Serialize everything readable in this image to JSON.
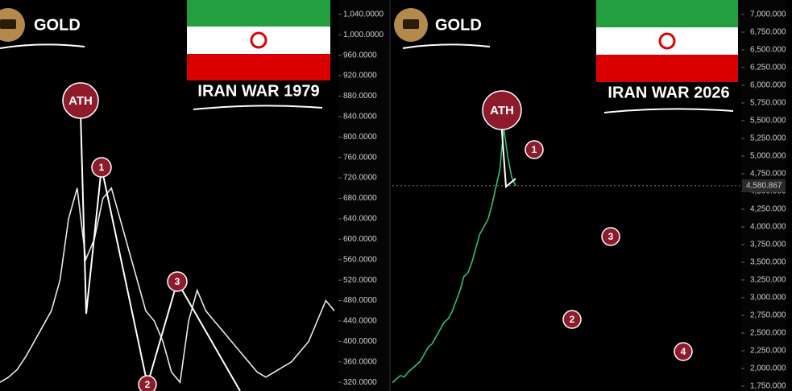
{
  "chart_data": [
    {
      "type": "line",
      "title": "GOLD",
      "subtitle": "IRAN WAR 1979",
      "color": "#e8e8e8",
      "categories": [
        null,
        null,
        null,
        null,
        null,
        null,
        null,
        null,
        null,
        null,
        null,
        null,
        null,
        null,
        null,
        null,
        null,
        null,
        null,
        null,
        null,
        null,
        null,
        null,
        null,
        null,
        null,
        null,
        null,
        null,
        null,
        null,
        null,
        null,
        null,
        null,
        null,
        null,
        null,
        null
      ],
      "values": [
        320,
        330,
        345,
        370,
        400,
        430,
        460,
        520,
        640,
        700,
        560,
        600,
        680,
        700,
        640,
        580,
        520,
        460,
        440,
        400,
        340,
        320,
        440,
        500,
        460,
        440,
        420,
        400,
        380,
        360,
        340,
        330,
        340,
        350,
        360,
        380,
        400,
        440,
        480,
        460
      ],
      "ylim": [
        303,
        1068
      ],
      "yticks": [
        {
          "value": 320,
          "label": "320.0000"
        },
        {
          "value": 360,
          "label": "360.0000"
        },
        {
          "value": 400,
          "label": "400.0000"
        },
        {
          "value": 440,
          "label": "440.0000"
        },
        {
          "value": 480,
          "label": "480.0000"
        },
        {
          "value": 520,
          "label": "520.0000"
        },
        {
          "value": 560,
          "label": "560.0000"
        },
        {
          "value": 600,
          "label": "600.0000"
        },
        {
          "value": 640,
          "label": "640.0000"
        },
        {
          "value": 680,
          "label": "680.0000"
        },
        {
          "value": 720,
          "label": "720.0000"
        },
        {
          "value": 760,
          "label": "760.0000"
        },
        {
          "value": 800,
          "label": "800.0000"
        },
        {
          "value": 840,
          "label": "840.0000"
        },
        {
          "value": 880,
          "label": "880.0000"
        },
        {
          "value": 920,
          "label": "920.0000"
        },
        {
          "value": 960,
          "label": "960.0000"
        },
        {
          "value": 1000,
          "label": "1,000.0000"
        },
        {
          "value": 1040,
          "label": "1,040.0000"
        }
      ],
      "annotations": [
        "ATH",
        "1",
        "2",
        "3"
      ]
    },
    {
      "type": "line",
      "title": "GOLD",
      "subtitle": "IRAN WAR 2026",
      "color": "#2fbf71",
      "categories": [
        null,
        null,
        null,
        null,
        null,
        null,
        null,
        null,
        null,
        null,
        null,
        null,
        null,
        null,
        null,
        null,
        null,
        null,
        null,
        null,
        null,
        null,
        null,
        null,
        null,
        null,
        null,
        null,
        null,
        null,
        null,
        null
      ],
      "values": [
        1800,
        1850,
        1900,
        1880,
        1950,
        2000,
        2050,
        2100,
        2200,
        2300,
        2350,
        2450,
        2550,
        2650,
        2700,
        2800,
        2950,
        3100,
        3300,
        3350,
        3500,
        3700,
        3900,
        4000,
        4100,
        4300,
        4550,
        4800,
        5400,
        5000,
        4700,
        4580.867
      ],
      "ylim": [
        1682,
        7204
      ],
      "yticks": [
        {
          "value": 1750,
          "label": "1,750.000"
        },
        {
          "value": 2000,
          "label": "2,000.000"
        },
        {
          "value": 2250,
          "label": "2,250.000"
        },
        {
          "value": 2500,
          "label": "2,500.000"
        },
        {
          "value": 2750,
          "label": "2,750.000"
        },
        {
          "value": 3000,
          "label": "3,000.000"
        },
        {
          "value": 3250,
          "label": "3,250.000"
        },
        {
          "value": 3500,
          "label": "3,500.000"
        },
        {
          "value": 3750,
          "label": "3,750.000"
        },
        {
          "value": 4000,
          "label": "4,000.000"
        },
        {
          "value": 4250,
          "label": "4,250.000"
        },
        {
          "value": 4500,
          "label": "4,500.000"
        },
        {
          "value": 4750,
          "label": "4,750.000"
        },
        {
          "value": 5000,
          "label": "5,000.000"
        },
        {
          "value": 5250,
          "label": "5,250.000"
        },
        {
          "value": 5500,
          "label": "5,500.000"
        },
        {
          "value": 5750,
          "label": "5,750.000"
        },
        {
          "value": 6000,
          "label": "6,000.000"
        },
        {
          "value": 6250,
          "label": "6,250.000"
        },
        {
          "value": 6500,
          "label": "6,500.000"
        },
        {
          "value": 6750,
          "label": "6,750.000"
        },
        {
          "value": 7000,
          "label": "7,000.000"
        }
      ],
      "last_price": {
        "value": 4580.867,
        "label": "4,580.867"
      },
      "annotations": [
        "ATH",
        "1",
        "2",
        "3",
        "4"
      ]
    }
  ]
}
